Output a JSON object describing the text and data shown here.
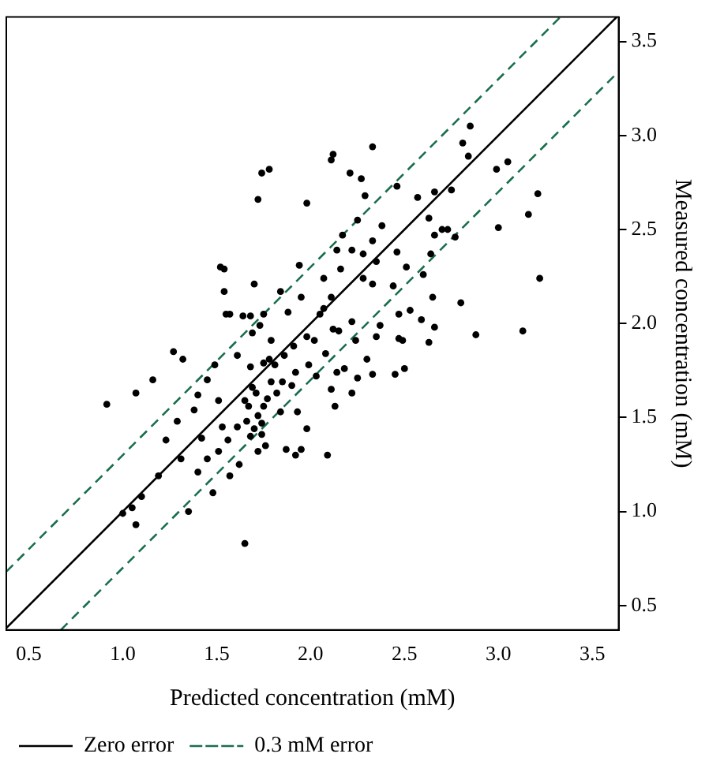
{
  "chart_data": {
    "type": "scatter",
    "xlabel": "Predicted concentration (mM)",
    "ylabel": "Measured concentration (mM)",
    "xlim": [
      0.38,
      3.64
    ],
    "ylim": [
      0.37,
      3.63
    ],
    "xticks": [
      0.5,
      {
        "value": 1,
        "label": "1.0"
      },
      1.5,
      {
        "value": 2,
        "label": "2.0"
      },
      2.5,
      {
        "value": 3,
        "label": "3.0"
      },
      3.5
    ],
    "yticks": [
      0.5,
      {
        "value": 1,
        "label": "1.0"
      },
      1.5,
      {
        "value": 2,
        "label": "2.0"
      },
      2.5,
      {
        "value": 3,
        "label": "3.0"
      },
      3.5
    ],
    "grid": false,
    "legend": "bottom",
    "marker": "circle",
    "series": [
      {
        "color": "#000000",
        "x": [
          0.915,
          1.07,
          1.16,
          1.27,
          1.32,
          1.29,
          1.23,
          1.19,
          1.1,
          1.05,
          1.0,
          1.07,
          1.35,
          1.65,
          1.31,
          1.38,
          1.4,
          1.4,
          1.42,
          1.45,
          1.45,
          1.49,
          1.48,
          1.52,
          1.54,
          1.54,
          1.55,
          1.57,
          1.51,
          1.53,
          1.51,
          1.56,
          1.57,
          1.62,
          1.61,
          1.64,
          1.68,
          1.69,
          1.66,
          1.68,
          1.72,
          1.7,
          1.72,
          1.74,
          1.74,
          1.76,
          1.77,
          1.75,
          1.7,
          1.72,
          1.74,
          1.78,
          1.75,
          1.69,
          1.73,
          1.79,
          1.78,
          1.81,
          1.79,
          1.82,
          1.84,
          1.87,
          1.84,
          1.88,
          1.86,
          1.91,
          1.94,
          1.95,
          1.98,
          1.92,
          1.9,
          1.93,
          1.98,
          1.95,
          1.92,
          1.99,
          2.03,
          2.02,
          2.05,
          2.07,
          2.09,
          2.08,
          2.11,
          2.11,
          2.12,
          2.13,
          2.11,
          2.15,
          2.14,
          2.17,
          2.16,
          2.18,
          2.21,
          2.22,
          2.22,
          2.22,
          2.24,
          2.25,
          2.25,
          2.27,
          2.29,
          2.28,
          2.28,
          2.3,
          2.33,
          2.33,
          2.35,
          2.33,
          2.33,
          2.35,
          2.38,
          2.37,
          2.44,
          2.45,
          2.46,
          2.46,
          2.47,
          2.47,
          2.5,
          2.51,
          2.49,
          2.53,
          2.57,
          2.59,
          2.6,
          2.63,
          2.64,
          2.63,
          2.65,
          2.66,
          2.66,
          2.66,
          2.7,
          2.73,
          2.75,
          2.77,
          2.8,
          2.81,
          2.84,
          2.85,
          2.88,
          2.99,
          3.0,
          3.05,
          3.13,
          3.16,
          3.21,
          3.22,
          1.65,
          1.67,
          1.71,
          1.61,
          1.85,
          1.75,
          1.68,
          2.07,
          2.12,
          2.14,
          1.98
        ],
        "values": [
          1.57,
          1.63,
          1.7,
          1.85,
          1.81,
          1.48,
          1.38,
          1.19,
          1.08,
          1.02,
          0.99,
          0.93,
          1.0,
          0.83,
          1.28,
          1.54,
          1.62,
          1.21,
          1.39,
          1.7,
          1.28,
          1.78,
          1.1,
          2.3,
          2.29,
          2.17,
          2.05,
          2.05,
          1.59,
          1.45,
          1.32,
          1.38,
          1.19,
          1.25,
          1.83,
          2.04,
          2.04,
          1.66,
          1.48,
          1.4,
          1.32,
          1.44,
          1.51,
          1.47,
          1.41,
          1.35,
          1.6,
          1.56,
          2.21,
          2.66,
          2.8,
          2.82,
          2.05,
          1.95,
          1.99,
          1.91,
          1.81,
          1.78,
          1.69,
          1.63,
          1.53,
          1.33,
          2.17,
          2.06,
          1.83,
          1.88,
          2.31,
          2.14,
          2.64,
          1.74,
          1.67,
          1.53,
          1.44,
          1.33,
          1.3,
          1.78,
          1.72,
          1.91,
          2.05,
          2.24,
          1.3,
          1.84,
          2.14,
          2.87,
          2.9,
          1.56,
          1.65,
          1.96,
          2.39,
          2.47,
          2.29,
          1.76,
          2.8,
          2.39,
          1.63,
          2.01,
          1.91,
          2.55,
          1.71,
          2.77,
          2.68,
          2.37,
          2.24,
          1.81,
          2.94,
          2.44,
          2.33,
          2.21,
          1.73,
          1.93,
          2.52,
          1.99,
          2.2,
          1.73,
          2.73,
          2.38,
          2.05,
          1.92,
          1.76,
          2.3,
          1.91,
          2.07,
          2.67,
          2.02,
          2.26,
          2.56,
          2.37,
          1.9,
          2.14,
          1.98,
          2.7,
          2.47,
          2.5,
          2.5,
          2.71,
          2.46,
          2.11,
          2.96,
          2.89,
          3.05,
          1.94,
          2.82,
          2.51,
          2.86,
          1.96,
          2.58,
          2.69,
          2.24,
          1.59,
          1.56,
          1.63,
          1.45,
          1.69,
          1.79,
          1.77,
          2.08,
          1.97,
          1.74,
          1.93
        ]
      },
      {
        "type": "line",
        "name": "Zero error",
        "marker": "none",
        "color": "#000000",
        "line_style": "solid",
        "x": [
          0.38,
          3.63
        ],
        "values": [
          0.38,
          3.63
        ]
      },
      {
        "type": "line",
        "name": "0.3 mM error",
        "marker": "none",
        "color": "#1a6e4c",
        "line_style": "dashed",
        "x": [
          0.38,
          3.33
        ],
        "values": [
          0.68,
          3.63
        ]
      },
      {
        "type": "line",
        "marker": "none",
        "color": "#1a6e4c",
        "line_style": "dashed",
        "x": [
          0.67,
          3.64
        ],
        "values": [
          0.37,
          3.34
        ]
      }
    ]
  }
}
